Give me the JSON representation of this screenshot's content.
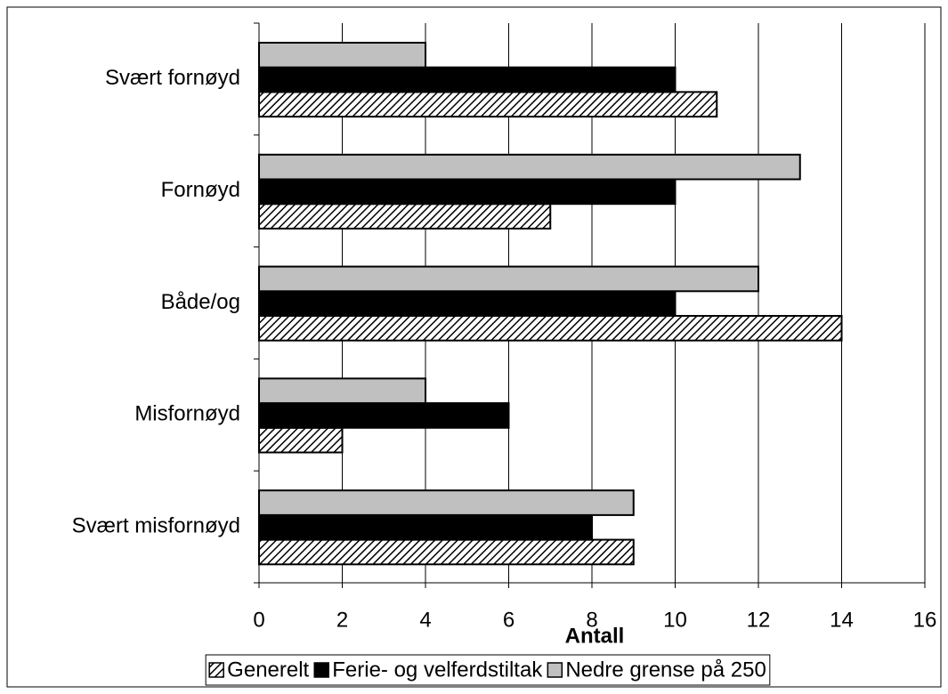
{
  "chart_data": {
    "type": "bar",
    "orientation": "horizontal",
    "x_label": "Antall",
    "categories": [
      "Svært fornøyd",
      "Fornøyd",
      "Både/og",
      "Misfornøyd",
      "Svært misfornøyd"
    ],
    "series": [
      {
        "name": "Generelt",
        "color": "#000000",
        "pattern": "hatch",
        "values": [
          11,
          7,
          14,
          2,
          9
        ]
      },
      {
        "name": "Ferie- og velferdstiltak",
        "color": "#000000",
        "values": [
          10,
          10,
          10,
          6,
          8
        ]
      },
      {
        "name": "Nedre grense på 250",
        "color": "#c0c0c0",
        "values": [
          4,
          13,
          12,
          4,
          9
        ]
      }
    ],
    "xlim": [
      0,
      16
    ],
    "xticks": [
      0,
      2,
      4,
      6,
      8,
      10,
      12,
      14,
      16
    ],
    "grid": true,
    "legend": "bottom"
  }
}
